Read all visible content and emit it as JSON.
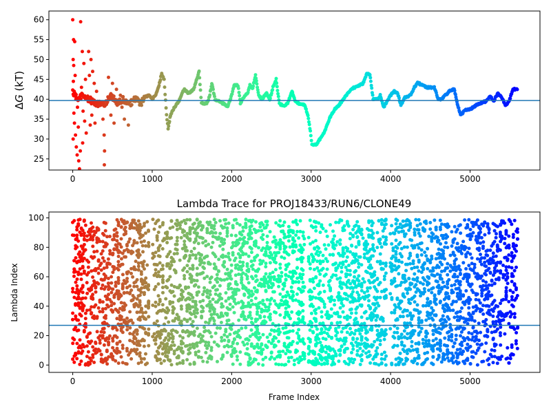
{
  "chart_data": [
    {
      "type": "scatter",
      "title": "",
      "xlabel": "",
      "ylabel": "ΔG (kT)",
      "ylabel_parts": {
        "delta": "Δ",
        "symbol": "G",
        "unit": " (kT)"
      },
      "xlim": [
        -300,
        5880
      ],
      "ylim": [
        22.2,
        62.2
      ],
      "x_ticks": [
        0,
        1000,
        2000,
        3000,
        4000,
        5000
      ],
      "x_tick_labels": [
        "0",
        "1000",
        "2000",
        "3000",
        "4000",
        "5000"
      ],
      "y_ticks": [
        25,
        30,
        35,
        40,
        45,
        50,
        55,
        60
      ],
      "y_tick_labels": [
        "25",
        "30",
        "35",
        "40",
        "45",
        "50",
        "55",
        "60"
      ],
      "colormap": "rainbow (red at frame 0 to violet at frame ~5600)",
      "hline": {
        "y": 39.7,
        "color": "#1f77b4"
      },
      "grid": false,
      "legend": "none",
      "trace_keypoints": [
        [
          0,
          42
        ],
        [
          60,
          40
        ],
        [
          120,
          41
        ],
        [
          200,
          40
        ],
        [
          300,
          39
        ],
        [
          400,
          38.5
        ],
        [
          480,
          41
        ],
        [
          560,
          39
        ],
        [
          640,
          40
        ],
        [
          700,
          38.5
        ],
        [
          780,
          40
        ],
        [
          860,
          39
        ],
        [
          900,
          40.5
        ],
        [
          960,
          41
        ],
        [
          1000,
          40
        ],
        [
          1040,
          41
        ],
        [
          1080,
          43
        ],
        [
          1120,
          46.5
        ],
        [
          1150,
          45
        ],
        [
          1180,
          36
        ],
        [
          1200,
          32.5
        ],
        [
          1230,
          36
        ],
        [
          1280,
          38
        ],
        [
          1350,
          40
        ],
        [
          1400,
          42.5
        ],
        [
          1460,
          41.5
        ],
        [
          1520,
          42.5
        ],
        [
          1560,
          45
        ],
        [
          1590,
          47
        ],
        [
          1620,
          39
        ],
        [
          1680,
          38.8
        ],
        [
          1720,
          40.5
        ],
        [
          1750,
          44
        ],
        [
          1790,
          40
        ],
        [
          1850,
          39.5
        ],
        [
          1900,
          38.8
        ],
        [
          1950,
          38.2
        ],
        [
          2000,
          41
        ],
        [
          2030,
          43.5
        ],
        [
          2080,
          43.5
        ],
        [
          2110,
          39
        ],
        [
          2150,
          40.5
        ],
        [
          2200,
          41.5
        ],
        [
          2230,
          43.5
        ],
        [
          2260,
          42.5
        ],
        [
          2300,
          46
        ],
        [
          2340,
          41
        ],
        [
          2380,
          40
        ],
        [
          2440,
          41.5
        ],
        [
          2480,
          40
        ],
        [
          2520,
          43
        ],
        [
          2560,
          45
        ],
        [
          2600,
          38.8
        ],
        [
          2650,
          38.4
        ],
        [
          2700,
          38.8
        ],
        [
          2760,
          42
        ],
        [
          2800,
          39.5
        ],
        [
          2860,
          38.8
        ],
        [
          2920,
          38.5
        ],
        [
          2960,
          36
        ],
        [
          2990,
          32
        ],
        [
          3010,
          28.5
        ],
        [
          3060,
          28.5
        ],
        [
          3110,
          30
        ],
        [
          3160,
          31.5
        ],
        [
          3200,
          33.5
        ],
        [
          3250,
          36
        ],
        [
          3300,
          37.5
        ],
        [
          3350,
          38.5
        ],
        [
          3420,
          40.5
        ],
        [
          3480,
          42
        ],
        [
          3530,
          42.8
        ],
        [
          3600,
          43.5
        ],
        [
          3650,
          43.8
        ],
        [
          3700,
          46.5
        ],
        [
          3740,
          46.3
        ],
        [
          3780,
          40
        ],
        [
          3840,
          40
        ],
        [
          3870,
          41
        ],
        [
          3910,
          38
        ],
        [
          3960,
          39.5
        ],
        [
          4000,
          41
        ],
        [
          4040,
          42
        ],
        [
          4090,
          41.5
        ],
        [
          4130,
          38.5
        ],
        [
          4180,
          40.5
        ],
        [
          4250,
          41
        ],
        [
          4300,
          43
        ],
        [
          4340,
          44.2
        ],
        [
          4400,
          43.5
        ],
        [
          4450,
          43
        ],
        [
          4490,
          43
        ],
        [
          4550,
          43
        ],
        [
          4600,
          40
        ],
        [
          4640,
          40
        ],
        [
          4690,
          41
        ],
        [
          4740,
          42
        ],
        [
          4800,
          42.5
        ],
        [
          4840,
          39
        ],
        [
          4880,
          36
        ],
        [
          4940,
          37.2
        ],
        [
          5000,
          37.5
        ],
        [
          5060,
          38.2
        ],
        [
          5100,
          38.8
        ],
        [
          5160,
          39.2
        ],
        [
          5200,
          39.5
        ],
        [
          5250,
          40.8
        ],
        [
          5300,
          39.6
        ],
        [
          5350,
          41.5
        ],
        [
          5400,
          40.5
        ],
        [
          5450,
          38.4
        ],
        [
          5500,
          40
        ],
        [
          5540,
          42.5
        ],
        [
          5600,
          42.5
        ]
      ],
      "early_scatter_points": [
        [
          0,
          60.0
        ],
        [
          100,
          59.5
        ],
        [
          10,
          55.0
        ],
        [
          25,
          54.5
        ],
        [
          5,
          50.0
        ],
        [
          12,
          48.5
        ],
        [
          30,
          46.0
        ],
        [
          8,
          44.5
        ],
        [
          18,
          42.0
        ],
        [
          40,
          40.0
        ],
        [
          60,
          38.0
        ],
        [
          15,
          36.5
        ],
        [
          22,
          34.0
        ],
        [
          70,
          33.0
        ],
        [
          35,
          31.0
        ],
        [
          5,
          30.0
        ],
        [
          45,
          28.0
        ],
        [
          55,
          26.0
        ],
        [
          75,
          24.5
        ],
        [
          85,
          22.5
        ],
        [
          120,
          52.0
        ],
        [
          140,
          49.0
        ],
        [
          160,
          45.0
        ],
        [
          110,
          43.0
        ],
        [
          130,
          37.0
        ],
        [
          150,
          34.5
        ],
        [
          170,
          31.5
        ],
        [
          125,
          29.0
        ],
        [
          95,
          27.0
        ],
        [
          200,
          52.0
        ],
        [
          230,
          50.0
        ],
        [
          250,
          47.0
        ],
        [
          210,
          46.0
        ],
        [
          270,
          44.0
        ],
        [
          240,
          36.0
        ],
        [
          280,
          34.0
        ],
        [
          220,
          33.5
        ],
        [
          300,
          42.0
        ],
        [
          330,
          39.0
        ],
        [
          380,
          35.0
        ],
        [
          395,
          31.0
        ],
        [
          400,
          27.0
        ],
        [
          398,
          23.5
        ],
        [
          450,
          45.5
        ],
        [
          500,
          44.0
        ],
        [
          550,
          42.5
        ],
        [
          600,
          41.0
        ],
        [
          650,
          35.0
        ],
        [
          700,
          33.5
        ],
        [
          480,
          36.0
        ],
        [
          520,
          34.0
        ],
        [
          620,
          38.0
        ]
      ]
    },
    {
      "type": "scatter",
      "title": "Lambda Trace for PROJ18433/RUN6/CLONE49",
      "xlabel": "Frame Index",
      "ylabel": "Lambda Index",
      "xlim": [
        -300,
        5880
      ],
      "ylim": [
        -5,
        104
      ],
      "x_ticks": [
        0,
        1000,
        2000,
        3000,
        4000,
        5000
      ],
      "x_tick_labels": [
        "0",
        "1000",
        "2000",
        "3000",
        "4000",
        "5000"
      ],
      "y_ticks": [
        0,
        20,
        40,
        60,
        80,
        100
      ],
      "y_tick_labels": [
        "0",
        "20",
        "40",
        "60",
        "80",
        "100"
      ],
      "colormap": "rainbow (red at frame 0 to violet at frame ~5600)",
      "hline": {
        "y": 27,
        "color": "#1f77b4"
      },
      "grid": false,
      "legend": "none",
      "frame_range": [
        0,
        5600
      ],
      "lambda_range": [
        0,
        99
      ],
      "gap_bands_x": [
        [
          960,
          1010
        ],
        [
          2920,
          2960
        ],
        [
          3950,
          4000
        ]
      ]
    }
  ]
}
